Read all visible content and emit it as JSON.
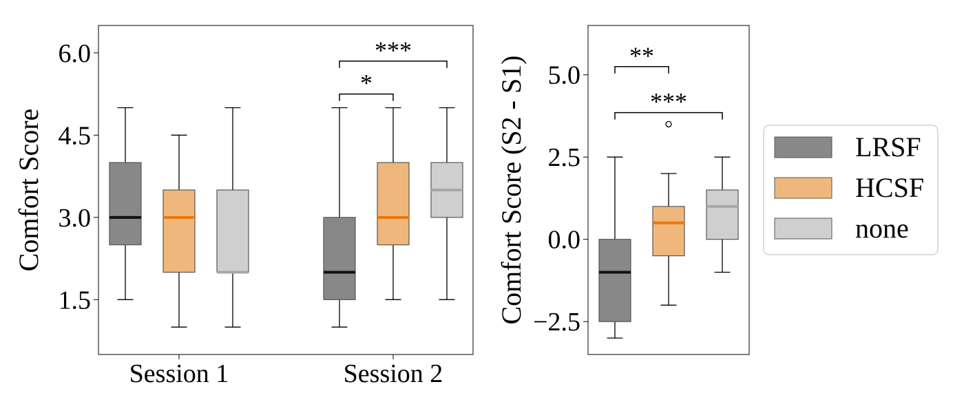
{
  "colors": {
    "LRSF": {
      "fill": "#888888",
      "median": "#111111"
    },
    "HCSF": {
      "fill": "#f0b77c",
      "median": "#e8780a"
    },
    "none": {
      "fill": "#cfcfcf",
      "median": "#a8a8a8"
    },
    "edge": "#555555"
  },
  "legend": {
    "placement": "right",
    "entries": [
      "LRSF",
      "HCSF",
      "none"
    ]
  },
  "chart_data": [
    {
      "type": "box",
      "ylabel": "Comfort Score",
      "xlabel": "",
      "ylim": [
        0.5,
        6.5
      ],
      "yticks": [
        1.5,
        3.0,
        4.5,
        6.0
      ],
      "ytick_labels": [
        "1.5",
        "3.0",
        "4.5",
        "6.0"
      ],
      "categories": [
        "Session 1",
        "Session 2"
      ],
      "grid": false,
      "series": [
        {
          "name": "LRSF",
          "boxes": [
            {
              "category": "Session 1",
              "whisker_low": 1.5,
              "q1": 2.5,
              "median": 3.0,
              "q3": 4.0,
              "whisker_high": 5.0,
              "outliers": []
            },
            {
              "category": "Session 2",
              "whisker_low": 1.0,
              "q1": 1.5,
              "median": 2.0,
              "q3": 3.0,
              "whisker_high": 5.0,
              "outliers": []
            }
          ]
        },
        {
          "name": "HCSF",
          "boxes": [
            {
              "category": "Session 1",
              "whisker_low": 1.0,
              "q1": 2.0,
              "median": 3.0,
              "q3": 3.5,
              "whisker_high": 4.5,
              "outliers": []
            },
            {
              "category": "Session 2",
              "whisker_low": 1.5,
              "q1": 2.5,
              "median": 3.0,
              "q3": 4.0,
              "whisker_high": 5.0,
              "outliers": []
            }
          ]
        },
        {
          "name": "none",
          "boxes": [
            {
              "category": "Session 1",
              "whisker_low": 1.0,
              "q1": 2.0,
              "median": 2.0,
              "q3": 3.5,
              "whisker_high": 5.0,
              "outliers": []
            },
            {
              "category": "Session 2",
              "whisker_low": 1.5,
              "q1": 3.0,
              "median": 3.5,
              "q3": 4.0,
              "whisker_high": 5.0,
              "outliers": []
            }
          ]
        }
      ],
      "annotations": [
        {
          "from": "LRSF",
          "to": "HCSF",
          "category": "Session 2",
          "y": 5.25,
          "label": "*"
        },
        {
          "from": "LRSF",
          "to": "none",
          "category": "Session 2",
          "y": 5.85,
          "label": "***"
        }
      ]
    },
    {
      "type": "box",
      "ylabel": "Comfort Score (S2 - S1)",
      "xlabel": "",
      "ylim": [
        -3.5,
        6.5
      ],
      "yticks": [
        -2.5,
        0.0,
        2.5,
        5.0
      ],
      "ytick_labels": [
        "−2.5",
        "0.0",
        "2.5",
        "5.0"
      ],
      "categories": [],
      "grid": false,
      "series": [
        {
          "name": "LRSF",
          "boxes": [
            {
              "whisker_low": -3.0,
              "q1": -2.5,
              "median": -1.0,
              "q3": 0.0,
              "whisker_high": 2.5,
              "outliers": []
            }
          ]
        },
        {
          "name": "HCSF",
          "boxes": [
            {
              "whisker_low": -2.0,
              "q1": -0.5,
              "median": 0.5,
              "q3": 1.0,
              "whisker_high": 2.0,
              "outliers": [
                3.5
              ]
            }
          ]
        },
        {
          "name": "none",
          "boxes": [
            {
              "whisker_low": -1.0,
              "q1": 0.0,
              "median": 1.0,
              "q3": 1.5,
              "whisker_high": 2.5,
              "outliers": []
            }
          ]
        }
      ],
      "annotations": [
        {
          "from": "LRSF",
          "to": "HCSF",
          "y": 5.25,
          "label": "**"
        },
        {
          "from": "LRSF",
          "to": "none",
          "y": 3.85,
          "label": "***"
        }
      ]
    }
  ]
}
